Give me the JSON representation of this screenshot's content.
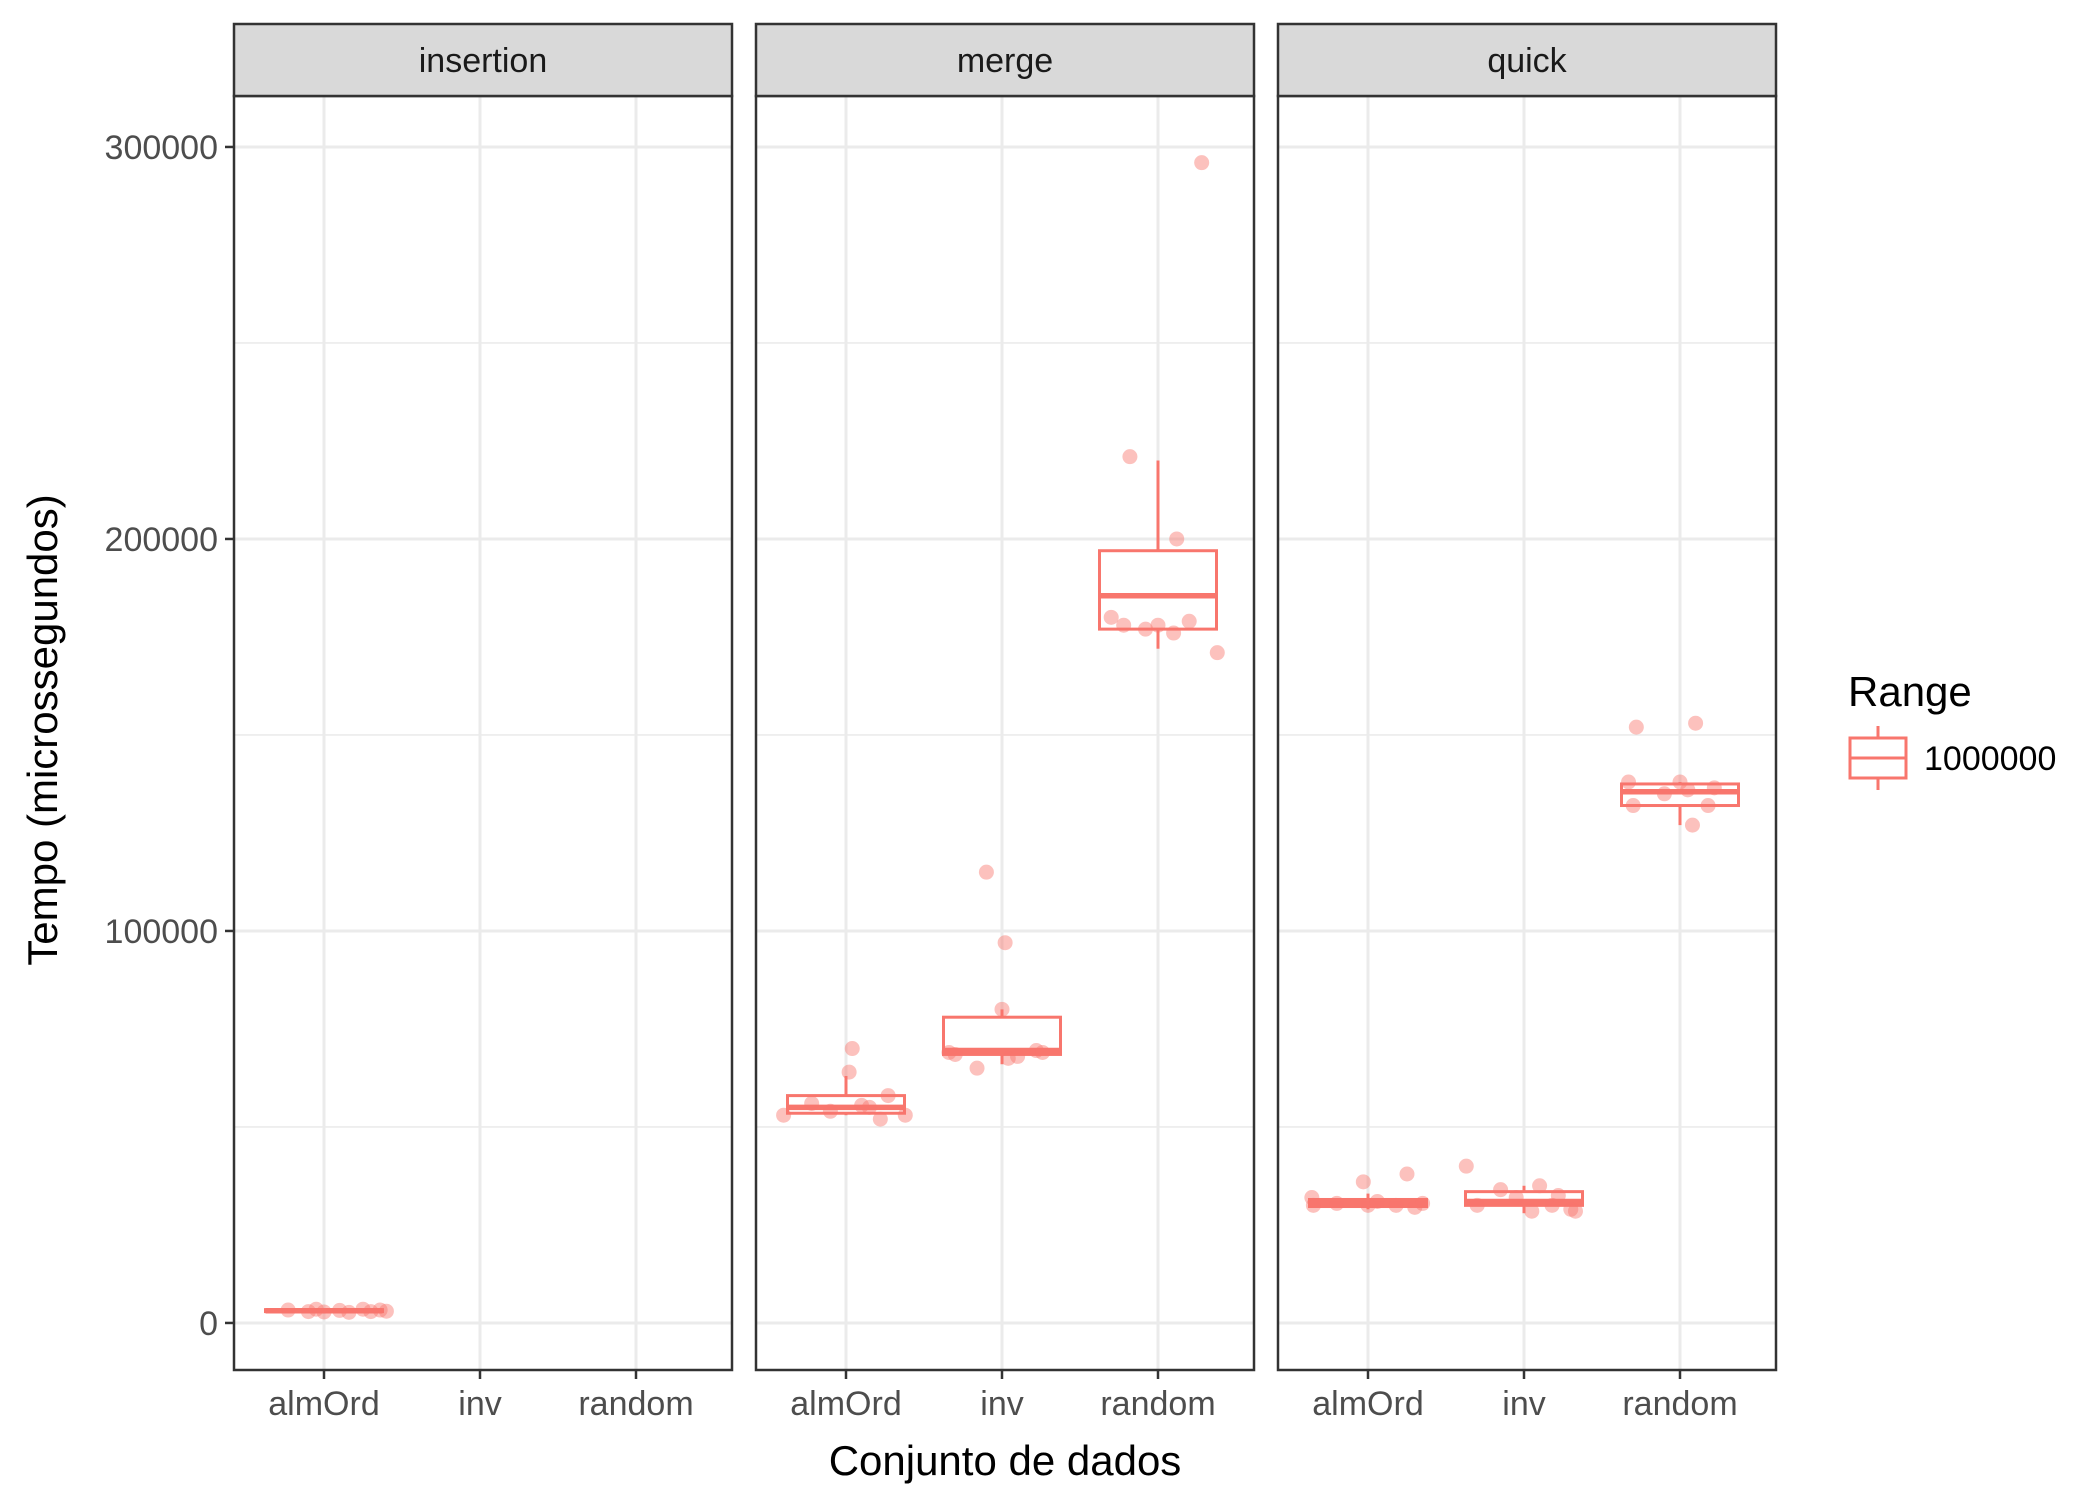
{
  "chart_data": {
    "type": "box",
    "xlabel": "Conjunto de dados",
    "ylabel": "Tempo (microssegundos)",
    "ylim": [
      -12000,
      313000
    ],
    "y_ticks": [
      0,
      100000,
      200000,
      300000
    ],
    "y_tick_labels": [
      "0",
      "100000",
      "200000",
      "300000"
    ],
    "categories": [
      "almOrd",
      "inv",
      "random"
    ],
    "grid": true,
    "legend": {
      "title": "Range",
      "position": "right",
      "entries": [
        {
          "label": "1000000",
          "color": "#F8766D"
        }
      ]
    },
    "series_color": "#F8766D",
    "panels": [
      {
        "name": "insertion",
        "boxes": [
          {
            "category": "almOrd",
            "min": 2400,
            "q1": 2900,
            "median": 3100,
            "q3": 3400,
            "max": 3800,
            "points": [
              {
                "x": -0.23,
                "y": 3300
              },
              {
                "x": -0.1,
                "y": 2900
              },
              {
                "x": -0.05,
                "y": 3500
              },
              {
                "x": 0.0,
                "y": 2800
              },
              {
                "x": 0.1,
                "y": 3200
              },
              {
                "x": 0.16,
                "y": 2700
              },
              {
                "x": 0.25,
                "y": 3500
              },
              {
                "x": 0.3,
                "y": 2900
              },
              {
                "x": 0.36,
                "y": 3300
              },
              {
                "x": 0.4,
                "y": 3000
              }
            ]
          }
        ]
      },
      {
        "name": "merge",
        "boxes": [
          {
            "category": "almOrd",
            "min": 53000,
            "q1": 53500,
            "median": 55000,
            "q3": 58000,
            "max": 63000,
            "points": [
              {
                "x": -0.4,
                "y": 53000
              },
              {
                "x": -0.22,
                "y": 56000
              },
              {
                "x": 0.02,
                "y": 64000
              },
              {
                "x": 0.04,
                "y": 70000
              },
              {
                "x": 0.15,
                "y": 55000
              },
              {
                "x": 0.22,
                "y": 52000
              },
              {
                "x": 0.27,
                "y": 58000
              },
              {
                "x": 0.38,
                "y": 53000
              },
              {
                "x": -0.1,
                "y": 54000
              },
              {
                "x": 0.1,
                "y": 55500
              }
            ]
          },
          {
            "category": "inv",
            "min": 66000,
            "q1": 68500,
            "median": 69500,
            "q3": 78000,
            "max": 80000,
            "points": [
              {
                "x": -0.34,
                "y": 69000
              },
              {
                "x": -0.3,
                "y": 68500
              },
              {
                "x": -0.16,
                "y": 65000
              },
              {
                "x": -0.1,
                "y": 115000
              },
              {
                "x": 0.0,
                "y": 80000
              },
              {
                "x": 0.02,
                "y": 97000
              },
              {
                "x": 0.04,
                "y": 67500
              },
              {
                "x": 0.1,
                "y": 68000
              },
              {
                "x": 0.22,
                "y": 69500
              },
              {
                "x": 0.26,
                "y": 69000
              }
            ]
          },
          {
            "category": "random",
            "min": 172000,
            "q1": 177000,
            "median": 185500,
            "q3": 197000,
            "max": 220000,
            "points": [
              {
                "x": -0.18,
                "y": 221000
              },
              {
                "x": -0.22,
                "y": 178000
              },
              {
                "x": -0.08,
                "y": 177000
              },
              {
                "x": 0.0,
                "y": 178000
              },
              {
                "x": 0.1,
                "y": 176000
              },
              {
                "x": 0.12,
                "y": 200000
              },
              {
                "x": 0.28,
                "y": 296000
              },
              {
                "x": 0.38,
                "y": 171000
              },
              {
                "x": 0.2,
                "y": 179000
              },
              {
                "x": -0.3,
                "y": 180000
              }
            ]
          }
        ]
      },
      {
        "name": "quick",
        "boxes": [
          {
            "category": "almOrd",
            "min": 29000,
            "q1": 29700,
            "median": 30500,
            "q3": 31500,
            "max": 33000,
            "points": [
              {
                "x": -0.36,
                "y": 32000
              },
              {
                "x": -0.35,
                "y": 30000
              },
              {
                "x": -0.2,
                "y": 30500
              },
              {
                "x": -0.03,
                "y": 36000
              },
              {
                "x": 0.0,
                "y": 30000
              },
              {
                "x": 0.06,
                "y": 31000
              },
              {
                "x": 0.18,
                "y": 30000
              },
              {
                "x": 0.25,
                "y": 38000
              },
              {
                "x": 0.3,
                "y": 29500
              },
              {
                "x": 0.35,
                "y": 30500
              }
            ]
          },
          {
            "category": "inv",
            "min": 28000,
            "q1": 30000,
            "median": 31000,
            "q3": 33500,
            "max": 35000,
            "points": [
              {
                "x": -0.37,
                "y": 40000
              },
              {
                "x": -0.3,
                "y": 30000
              },
              {
                "x": -0.15,
                "y": 34000
              },
              {
                "x": -0.05,
                "y": 32000
              },
              {
                "x": 0.05,
                "y": 28500
              },
              {
                "x": 0.1,
                "y": 35000
              },
              {
                "x": 0.18,
                "y": 30000
              },
              {
                "x": 0.22,
                "y": 32500
              },
              {
                "x": 0.3,
                "y": 29000
              },
              {
                "x": 0.33,
                "y": 28500
              }
            ]
          },
          {
            "category": "random",
            "min": 127000,
            "q1": 132000,
            "median": 135500,
            "q3": 137500,
            "max": 138000,
            "points": [
              {
                "x": -0.33,
                "y": 138000
              },
              {
                "x": -0.28,
                "y": 152000
              },
              {
                "x": -0.3,
                "y": 132000
              },
              {
                "x": -0.1,
                "y": 135000
              },
              {
                "x": 0.0,
                "y": 138000
              },
              {
                "x": 0.05,
                "y": 136000
              },
              {
                "x": 0.08,
                "y": 127000
              },
              {
                "x": 0.1,
                "y": 153000
              },
              {
                "x": 0.18,
                "y": 132000
              },
              {
                "x": 0.22,
                "y": 136500
              }
            ]
          }
        ]
      }
    ]
  }
}
